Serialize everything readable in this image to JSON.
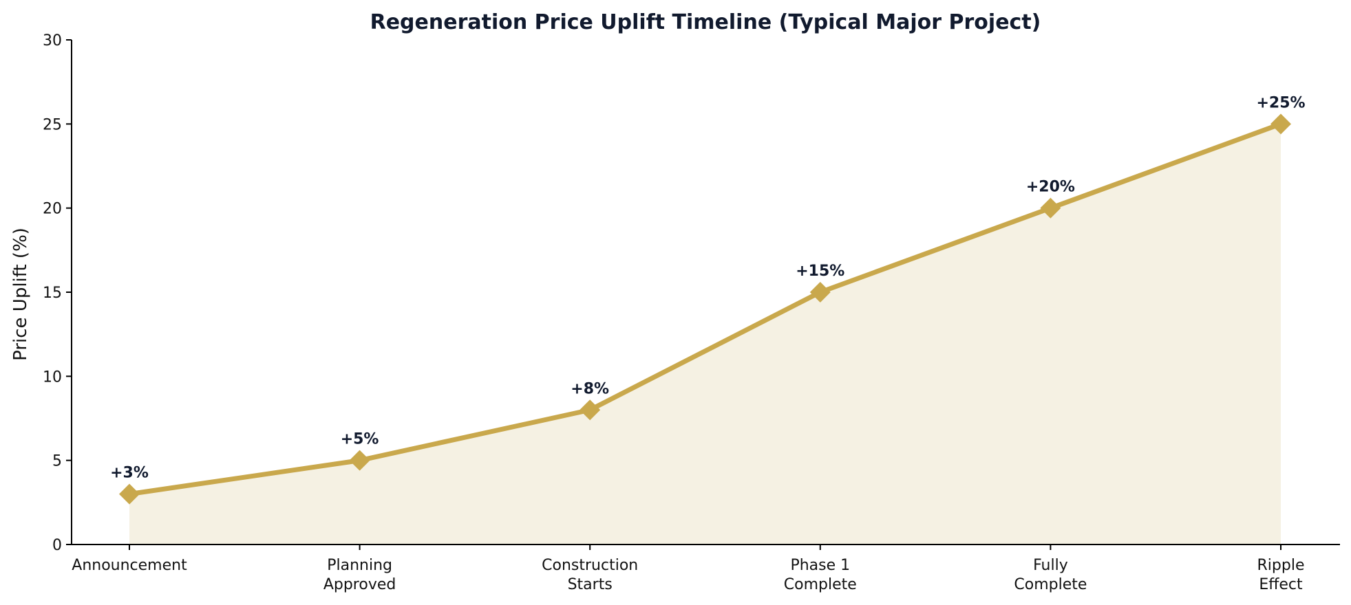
{
  "chart_data": {
    "type": "line",
    "title": "Regeneration Price Uplift Timeline (Typical Major Project)",
    "xlabel": "",
    "ylabel": "Price Uplift (%)",
    "categories": [
      [
        "Announcement"
      ],
      [
        "Planning",
        "Approved"
      ],
      [
        "Construction",
        "Starts"
      ],
      [
        "Phase 1",
        "Complete"
      ],
      [
        "Fully",
        "Complete"
      ],
      [
        "Ripple",
        "Effect"
      ]
    ],
    "values": [
      3,
      5,
      8,
      15,
      20,
      25
    ],
    "data_labels": [
      "+3%",
      "+5%",
      "+8%",
      "+15%",
      "+20%",
      "+25%"
    ],
    "ylim": [
      0,
      30
    ],
    "yticks": [
      0,
      5,
      10,
      15,
      20,
      25,
      30
    ],
    "yticklabels": [
      "0",
      "5",
      "10",
      "15",
      "20",
      "25",
      "30"
    ],
    "grid": false,
    "area_fill": true,
    "marker": "diamond",
    "colors": {
      "line": "#c9a84c",
      "fill": "#f5f1e3",
      "axis": "#000000",
      "title": "#111a2e",
      "labels": "#111a2e",
      "ticks": "#111111"
    }
  }
}
